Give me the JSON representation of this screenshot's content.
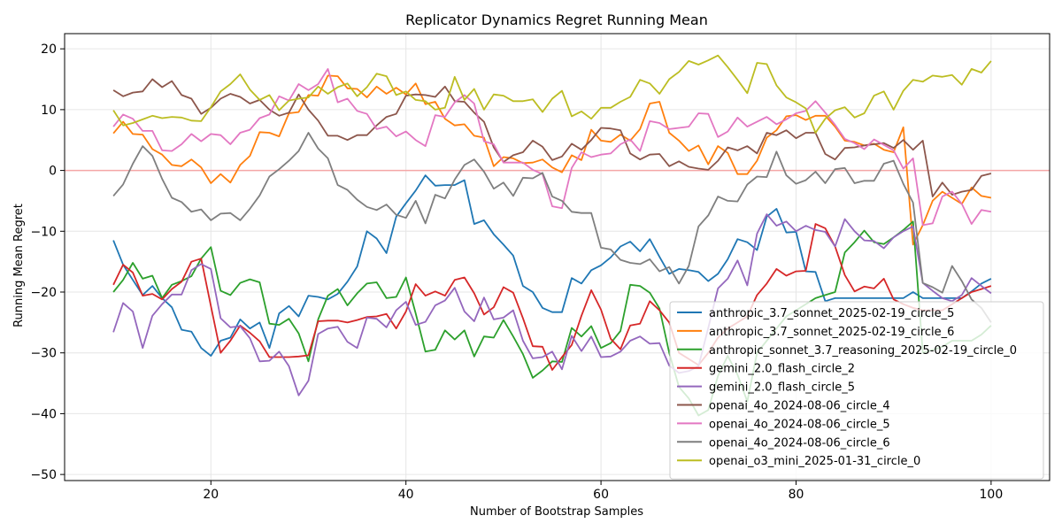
{
  "chart_data": {
    "type": "line",
    "title": "Replicator Dynamics Regret Running Mean",
    "xlabel": "Number of Bootstrap Samples",
    "ylabel": "Running Mean Regret",
    "xlim": [
      5,
      106
    ],
    "ylim": [
      -51,
      22.5
    ],
    "xticks": [
      20,
      40,
      60,
      80,
      100
    ],
    "yticks": [
      -50,
      -40,
      -30,
      -20,
      -10,
      0,
      10,
      20
    ],
    "grid": true,
    "legend_position": "lower-right",
    "reference_line": {
      "y": 0,
      "color": "#f4a6a6"
    },
    "x": [
      10,
      11,
      12,
      13,
      14,
      15,
      16,
      17,
      18,
      19,
      20,
      21,
      22,
      23,
      24,
      25,
      26,
      27,
      28,
      29,
      30,
      31,
      32,
      33,
      34,
      35,
      36,
      37,
      38,
      39,
      40,
      41,
      42,
      43,
      44,
      45,
      46,
      47,
      48,
      49,
      50,
      51,
      52,
      53,
      54,
      55,
      56,
      57,
      58,
      59,
      60,
      61,
      62,
      63,
      64,
      65,
      66,
      67,
      68,
      69,
      70,
      71,
      72,
      73,
      74,
      75,
      76,
      77,
      78,
      79,
      80,
      81,
      82,
      83,
      84,
      85,
      86,
      87,
      88,
      89,
      90,
      91,
      92,
      93,
      94,
      95,
      96,
      97,
      98,
      99,
      100
    ],
    "series": [
      {
        "name": "anthropic_3.7_sonnet_2025-02-19_circle_5",
        "color": "#1f77b4",
        "values": [
          -11.5,
          -15.5,
          -18.0,
          -20.5,
          -19.0,
          -21.0,
          -22.5,
          -26.2,
          -26.5,
          -29.2,
          -30.5,
          -28.0,
          -27.5,
          -24.5,
          -26.0,
          -25.0,
          -29.2,
          -23.5,
          -22.3,
          -24.0,
          -20.6,
          -20.8,
          -21.2,
          -20.3,
          -18.3,
          -15.8,
          -10.0,
          -11.2,
          -13.6,
          -7.6,
          -5.4,
          -3.3,
          -0.8,
          -2.5,
          -2.4,
          -2.4,
          -1.6,
          -8.8,
          -8.2,
          -10.5,
          -12.2,
          -14.0,
          -19.0,
          -20.0,
          -22.6,
          -23.3,
          -23.3,
          -17.7,
          -18.6,
          -16.4,
          -15.6,
          -14.3,
          -12.5,
          -11.7,
          -13.3,
          -11.3,
          -14.2,
          -17.0,
          -16.2,
          -16.4,
          -16.7,
          -18.2,
          -17.0,
          -14.6,
          -11.3,
          -11.8,
          -13.1,
          -7.6,
          -6.3,
          -10.2,
          -10.1,
          -16.6,
          -16.7,
          -21.5,
          -21.0,
          -21.0,
          -21.0,
          -21.0,
          -21.0,
          -21.0,
          -21.0,
          -21.0,
          -20.0,
          -21.0,
          -21.0,
          -21.0,
          -21.0,
          -21.0,
          -19.9,
          -18.6,
          -17.8
        ]
      },
      {
        "name": "anthropic_3.7_sonnet_2025-02-19_circle_6",
        "color": "#ff7f0e",
        "values": [
          6.1,
          8.0,
          6.0,
          5.9,
          3.5,
          2.6,
          0.9,
          0.7,
          1.8,
          0.5,
          -2.1,
          -0.6,
          -2.0,
          0.9,
          2.4,
          6.3,
          6.2,
          5.6,
          9.4,
          9.6,
          12.4,
          12.3,
          15.6,
          15.5,
          13.5,
          13.4,
          12.0,
          13.8,
          12.6,
          13.6,
          12.5,
          14.3,
          10.9,
          11.3,
          8.5,
          7.4,
          7.6,
          5.7,
          5.4,
          0.7,
          2.2,
          2.0,
          1.2,
          1.3,
          1.8,
          0.5,
          -0.3,
          2.5,
          1.7,
          6.7,
          4.9,
          4.7,
          5.9,
          4.9,
          6.8,
          11.0,
          11.3,
          6.2,
          4.9,
          3.2,
          4.1,
          1.0,
          4.0,
          2.9,
          -0.6,
          -0.6,
          1.6,
          5.4,
          6.6,
          8.9,
          9.1,
          8.3,
          9.0,
          9.0,
          7.2,
          4.9,
          4.7,
          4.1,
          4.4,
          3.4,
          3.0,
          7.1,
          -12.2,
          -9.0,
          -5.0,
          -3.5,
          -4.5,
          -5.5,
          -2.8,
          -4.2,
          -4.5
        ]
      },
      {
        "name": "anthropic_sonnet_3.7_reasoning_2025-02-19_circle_0",
        "color": "#2ca02c",
        "values": [
          -20.0,
          -18.0,
          -15.2,
          -17.8,
          -17.3,
          -21.0,
          -18.8,
          -18.2,
          -17.4,
          -14.5,
          -12.6,
          -19.8,
          -20.5,
          -18.5,
          -17.9,
          -18.4,
          -25.2,
          -25.4,
          -24.4,
          -26.8,
          -31.4,
          -24.5,
          -20.6,
          -19.5,
          -22.2,
          -20.2,
          -18.6,
          -18.4,
          -21.0,
          -20.8,
          -17.6,
          -23.5,
          -29.8,
          -29.5,
          -26.3,
          -27.8,
          -26.3,
          -30.6,
          -27.3,
          -27.5,
          -24.6,
          -27.3,
          -30.2,
          -34.1,
          -32.9,
          -31.4,
          -31.5,
          -25.9,
          -27.3,
          -25.6,
          -29.2,
          -28.4,
          -26.4,
          -18.8,
          -19.0,
          -20.1,
          -22.7,
          -30.0,
          -35.6,
          -37.5,
          -40.3,
          -39.4,
          -33.8,
          -30.5,
          -33.6,
          -38.0,
          -30.0,
          -28.0,
          -26.0,
          -24.0,
          -23.0,
          -22.0,
          -21.0,
          -20.5,
          -20.0,
          -13.5,
          -11.8,
          -9.9,
          -11.8,
          -12.1,
          -11.0,
          -9.8,
          -8.4,
          -30.0,
          -29.5,
          -29.0,
          -28.0,
          -28.0,
          -28.0,
          -27.0,
          -25.5
        ]
      },
      {
        "name": "gemini_2.0_flash_circle_2",
        "color": "#d62728",
        "values": [
          -18.8,
          -15.5,
          -16.8,
          -20.6,
          -20.3,
          -21.2,
          -19.5,
          -18.3,
          -15.0,
          -14.5,
          -22.3,
          -30.0,
          -28.0,
          -25.5,
          -26.7,
          -28.1,
          -30.7,
          -30.7,
          -30.7,
          -30.6,
          -30.4,
          -24.8,
          -24.7,
          -24.7,
          -25.0,
          -24.6,
          -24.1,
          -24.0,
          -23.6,
          -26.0,
          -23.2,
          -18.7,
          -20.6,
          -19.9,
          -20.6,
          -18.0,
          -17.6,
          -20.2,
          -23.7,
          -22.5,
          -19.2,
          -20.1,
          -24.3,
          -28.9,
          -29.0,
          -32.8,
          -30.7,
          -28.7,
          -23.9,
          -19.7,
          -22.9,
          -27.7,
          -29.4,
          -25.5,
          -25.2,
          -21.5,
          -23.0,
          -25.0,
          -30.0,
          -31.0,
          -32.0,
          -30.0,
          -27.5,
          -26.0,
          -25.0,
          -24.0,
          -20.5,
          -18.6,
          -16.2,
          -17.3,
          -16.6,
          -16.5,
          -8.8,
          -9.5,
          -12.5,
          -17.2,
          -19.9,
          -19.1,
          -19.4,
          -17.8,
          -21.2,
          -22.0,
          -22.6,
          -23.0,
          -23.0,
          -23.0,
          -22.0,
          -21.0,
          -20.0,
          -19.5,
          -19.0
        ]
      },
      {
        "name": "gemini_2.0_flash_circle_5",
        "color": "#9467bd",
        "values": [
          -26.6,
          -21.8,
          -23.2,
          -29.2,
          -23.9,
          -22.0,
          -20.4,
          -20.4,
          -16.4,
          -15.4,
          -16.2,
          -24.3,
          -25.8,
          -25.6,
          -27.6,
          -31.4,
          -31.3,
          -29.8,
          -32.2,
          -37.0,
          -34.6,
          -26.9,
          -26.0,
          -25.7,
          -28.2,
          -29.2,
          -24.2,
          -24.4,
          -25.8,
          -23.0,
          -21.6,
          -25.4,
          -24.9,
          -22.2,
          -21.4,
          -19.3,
          -23.2,
          -24.8,
          -20.9,
          -24.5,
          -24.2,
          -23.0,
          -28.0,
          -30.9,
          -30.7,
          -29.8,
          -32.7,
          -27.2,
          -29.7,
          -27.3,
          -30.7,
          -30.6,
          -29.8,
          -28.0,
          -27.3,
          -28.5,
          -28.4,
          -32.1,
          -33.3,
          -33.0,
          -32.2,
          -25.9,
          -19.4,
          -17.8,
          -14.8,
          -18.9,
          -10.4,
          -7.2,
          -9.1,
          -8.4,
          -10.0,
          -9.1,
          -9.8,
          -10.1,
          -12.5,
          -8.0,
          -10.0,
          -11.5,
          -11.6,
          -12.8,
          -11.0,
          -10.0,
          -9.2,
          -18.5,
          -19.8,
          -21.0,
          -21.5,
          -20.5,
          -17.7,
          -19.0,
          -20.2
        ]
      },
      {
        "name": "openai_4o_2024-08-06_circle_4",
        "color": "#8c564b",
        "values": [
          13.2,
          12.2,
          12.8,
          13.0,
          15.0,
          13.7,
          14.7,
          12.4,
          11.8,
          9.3,
          10.3,
          11.8,
          12.6,
          12.1,
          11.0,
          11.6,
          10.0,
          9.0,
          9.5,
          12.5,
          10.0,
          8.2,
          5.7,
          5.7,
          5.0,
          5.8,
          5.8,
          7.4,
          8.8,
          9.3,
          12.3,
          12.5,
          12.4,
          12.1,
          13.8,
          11.4,
          11.3,
          9.5,
          8.0,
          3.8,
          1.4,
          2.5,
          3.0,
          4.9,
          3.9,
          1.7,
          2.3,
          4.4,
          3.4,
          5.0,
          7.0,
          6.9,
          6.6,
          2.8,
          1.8,
          2.6,
          2.7,
          0.7,
          1.5,
          0.6,
          0.3,
          0.1,
          1.6,
          3.8,
          3.3,
          4.0,
          2.8,
          6.2,
          5.8,
          6.6,
          5.3,
          6.2,
          6.2,
          2.7,
          1.8,
          3.7,
          3.8,
          4.1,
          4.3,
          4.5,
          3.7,
          5.0,
          3.4,
          4.9,
          -4.3,
          -2.0,
          -4.0,
          -3.5,
          -3.2,
          -0.9,
          -0.5
        ]
      },
      {
        "name": "openai_4o_2024-08-06_circle_5",
        "color": "#e377c2",
        "values": [
          7.2,
          9.2,
          8.5,
          6.5,
          6.5,
          3.3,
          3.2,
          4.3,
          6.0,
          4.8,
          6.0,
          5.8,
          4.3,
          6.2,
          6.7,
          8.6,
          9.2,
          12.2,
          11.5,
          14.2,
          13.2,
          14.2,
          16.7,
          11.2,
          11.8,
          9.8,
          9.3,
          6.8,
          7.2,
          5.6,
          6.4,
          5.0,
          4.0,
          9.1,
          8.8,
          11.2,
          12.4,
          11.0,
          4.8,
          4.3,
          1.3,
          1.3,
          1.3,
          0.1,
          -0.6,
          -5.9,
          -6.2,
          0.4,
          3.0,
          2.2,
          2.6,
          2.8,
          4.3,
          5.1,
          3.2,
          8.1,
          7.8,
          6.8,
          7.0,
          7.2,
          9.4,
          9.3,
          5.5,
          6.4,
          8.7,
          7.2,
          8.0,
          8.8,
          7.6,
          8.4,
          9.4,
          9.8,
          11.4,
          9.5,
          7.5,
          5.2,
          4.5,
          3.5,
          5.1,
          4.2,
          3.3,
          0.3,
          2.0,
          -9.0,
          -8.7,
          -4.3,
          -3.5,
          -5.5,
          -8.8,
          -6.5,
          -6.8
        ]
      },
      {
        "name": "openai_4o_2024-08-06_circle_6",
        "color": "#7f7f7f",
        "values": [
          -4.2,
          -2.3,
          1.1,
          4.0,
          2.4,
          -1.4,
          -4.5,
          -5.2,
          -6.8,
          -6.4,
          -8.2,
          -7.1,
          -7.0,
          -8.2,
          -6.3,
          -4.1,
          -1.0,
          0.2,
          1.6,
          3.2,
          6.2,
          3.6,
          2.0,
          -2.4,
          -3.2,
          -4.8,
          -6.0,
          -6.5,
          -5.6,
          -7.3,
          -7.8,
          -5.0,
          -8.7,
          -4.0,
          -4.6,
          -1.5,
          0.9,
          1.8,
          -0.2,
          -3.0,
          -2.0,
          -4.2,
          -1.2,
          -1.3,
          -0.4,
          -4.3,
          -5.0,
          -6.8,
          -7.0,
          -7.0,
          -12.7,
          -13.0,
          -14.7,
          -15.2,
          -15.4,
          -14.6,
          -16.6,
          -15.9,
          -18.6,
          -15.7,
          -9.2,
          -7.4,
          -4.3,
          -5.0,
          -5.1,
          -2.3,
          -1.0,
          -1.1,
          3.1,
          -0.8,
          -2.2,
          -1.6,
          -0.2,
          -2.1,
          0.2,
          0.4,
          -2.1,
          -1.7,
          -1.7,
          1.1,
          1.6,
          -2.2,
          -5.3,
          -18.5,
          -19.2,
          -20.1,
          -15.7,
          -18.2,
          -21.2,
          -22.6,
          -25.0
        ]
      },
      {
        "name": "openai_o3_mini_2025-01-31_circle_0",
        "color": "#bcbd22",
        "values": [
          9.9,
          7.4,
          7.8,
          8.4,
          9.0,
          8.6,
          8.8,
          8.7,
          8.2,
          8.1,
          10.4,
          13.0,
          14.2,
          15.8,
          13.3,
          11.6,
          12.4,
          9.9,
          11.5,
          11.8,
          12.0,
          13.8,
          12.6,
          13.7,
          14.3,
          12.2,
          13.7,
          15.9,
          15.5,
          12.4,
          13.0,
          11.6,
          11.4,
          10.0,
          10.3,
          15.4,
          11.6,
          13.4,
          10.0,
          12.5,
          12.3,
          11.4,
          11.4,
          11.7,
          9.6,
          11.8,
          13.1,
          8.9,
          9.7,
          8.5,
          10.3,
          10.3,
          11.3,
          12.1,
          14.9,
          14.3,
          12.6,
          15.0,
          16.2,
          18.0,
          17.4,
          18.1,
          18.9,
          17.0,
          14.9,
          12.7,
          17.7,
          17.5,
          14.0,
          12.0,
          11.2,
          10.2,
          6.2,
          8.5,
          9.9,
          10.4,
          8.7,
          9.4,
          12.3,
          13.0,
          10.0,
          13.1,
          14.9,
          14.6,
          15.6,
          15.4,
          15.7,
          14.1,
          16.7,
          16.1,
          18.0
        ]
      }
    ]
  }
}
